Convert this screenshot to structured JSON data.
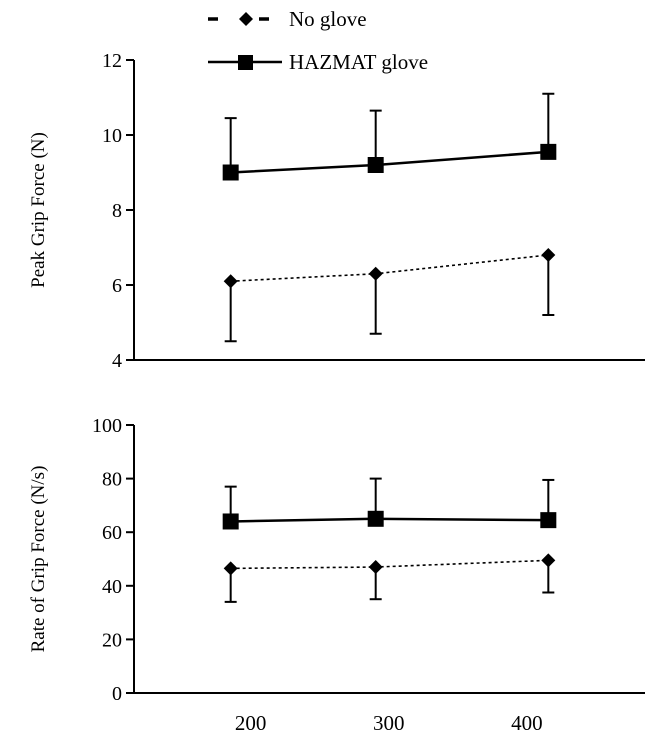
{
  "legend": {
    "placement": "top-center",
    "entries": [
      {
        "label": "No glove",
        "style": "dashed",
        "marker": "diamond"
      },
      {
        "label": "HAZMAT glove",
        "style": "solid",
        "marker": "square"
      }
    ]
  },
  "chart_data": [
    {
      "type": "line",
      "ylabel": "Peak Grip Force  (N)",
      "xlabel": "",
      "ylim": [
        4,
        12
      ],
      "yticks": [
        4,
        6,
        8,
        10,
        12
      ],
      "xlim": [
        130,
        500
      ],
      "xticks": [],
      "grid": false,
      "series": [
        {
          "name": "No glove",
          "style": "dashed",
          "marker": "diamond",
          "color": "#000000",
          "x": [
            200,
            305,
            430
          ],
          "y": [
            6.1,
            6.3,
            6.8
          ],
          "error": [
            1.6,
            1.6,
            1.6
          ]
        },
        {
          "name": "HAZMAT glove",
          "style": "solid",
          "marker": "square",
          "color": "#000000",
          "x": [
            200,
            305,
            430
          ],
          "y": [
            9.0,
            9.2,
            9.55
          ],
          "error": [
            1.45,
            1.45,
            1.55
          ]
        }
      ]
    },
    {
      "type": "line",
      "ylabel": "Rate of Grip Force (N/s)",
      "xlabel": "",
      "ylim": [
        0,
        100
      ],
      "yticks": [
        0,
        20,
        40,
        60,
        80,
        100
      ],
      "xlim": [
        130,
        500
      ],
      "xticks": [
        200,
        300,
        400
      ],
      "grid": false,
      "series": [
        {
          "name": "No glove",
          "style": "dashed",
          "marker": "diamond",
          "color": "#000000",
          "x": [
            200,
            305,
            430
          ],
          "y": [
            46.5,
            47.0,
            49.5
          ],
          "error": [
            12.5,
            12.0,
            12.0
          ]
        },
        {
          "name": "HAZMAT glove",
          "style": "solid",
          "marker": "square",
          "color": "#000000",
          "x": [
            200,
            305,
            430
          ],
          "y": [
            64.0,
            65.0,
            64.5
          ],
          "error": [
            13.0,
            15.0,
            15.0
          ]
        }
      ]
    }
  ]
}
